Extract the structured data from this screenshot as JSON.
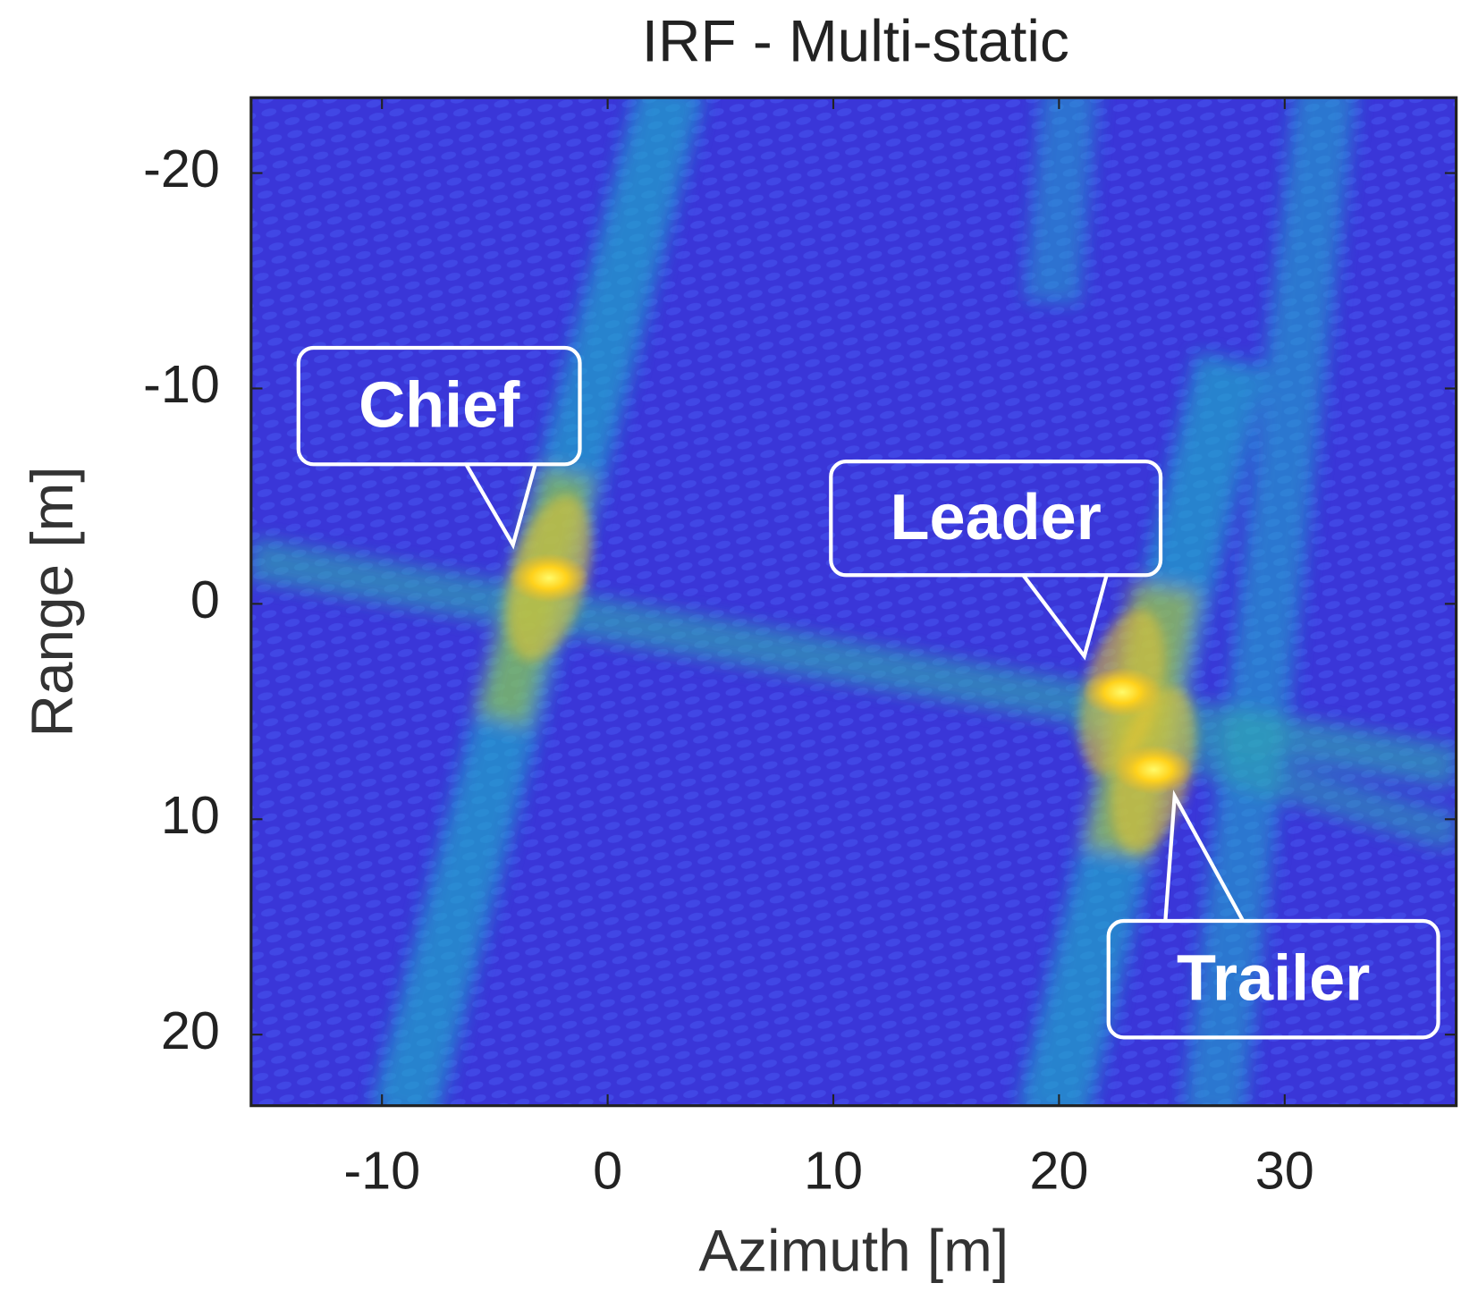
{
  "chart_data": {
    "type": "heatmap",
    "title": "IRF - Multi-static",
    "xlabel": "Azimuth [m]",
    "ylabel": "Range [m]",
    "xlim": [
      -15.8,
      37.6
    ],
    "ylim": [
      -23.5,
      23.3
    ],
    "y_inverted": true,
    "xticks": [
      -10,
      0,
      10,
      20,
      30
    ],
    "yticks": [
      -20,
      -10,
      0,
      10,
      20
    ],
    "colormap": "parula",
    "targets": [
      {
        "label": "Chief",
        "x": -2.6,
        "y": -1.2
      },
      {
        "label": "Leader",
        "x": 22.8,
        "y": 4.1
      },
      {
        "label": "Trailer",
        "x": 24.2,
        "y": 7.7
      }
    ]
  }
}
